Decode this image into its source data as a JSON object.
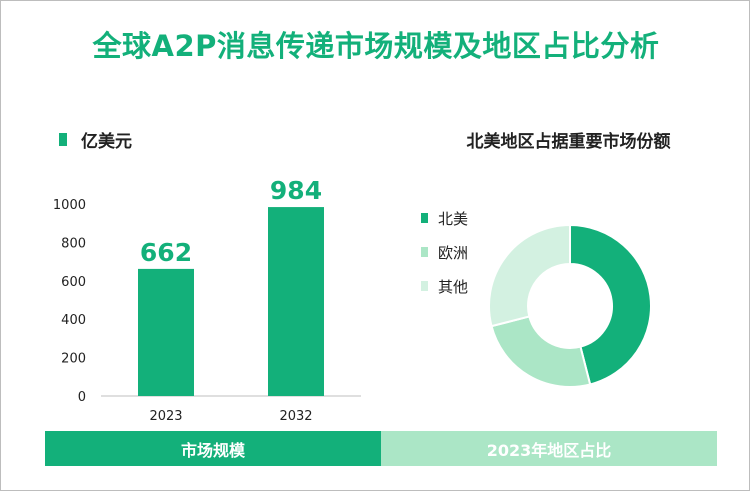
{
  "title": "全球A2P消息传递市场规模及地区占比分析",
  "bar_section": {
    "unit_label": "亿美元",
    "footer_label": "市场规模"
  },
  "pie_section": {
    "title": "北美地区占据重要市场份额",
    "footer_label": "2023年地区占比"
  },
  "colors": {
    "primary": "#13b07a",
    "secondary": "#abe6c6",
    "tertiary": "#d3f1e1"
  },
  "chart_data": [
    {
      "type": "bar",
      "categories": [
        "2023",
        "2032"
      ],
      "values": [
        662,
        984
      ],
      "ylim": [
        0,
        1000
      ],
      "yticks": [
        "0",
        "200",
        "400",
        "600",
        "800",
        "1000"
      ],
      "data_labels": [
        "662",
        "984"
      ]
    },
    {
      "type": "pie",
      "labels": [
        "北美",
        "欧洲",
        "其他"
      ],
      "values": [
        46,
        25,
        29
      ],
      "colors": [
        "#13b07a",
        "#abe6c6",
        "#d3f1e1"
      ]
    }
  ]
}
